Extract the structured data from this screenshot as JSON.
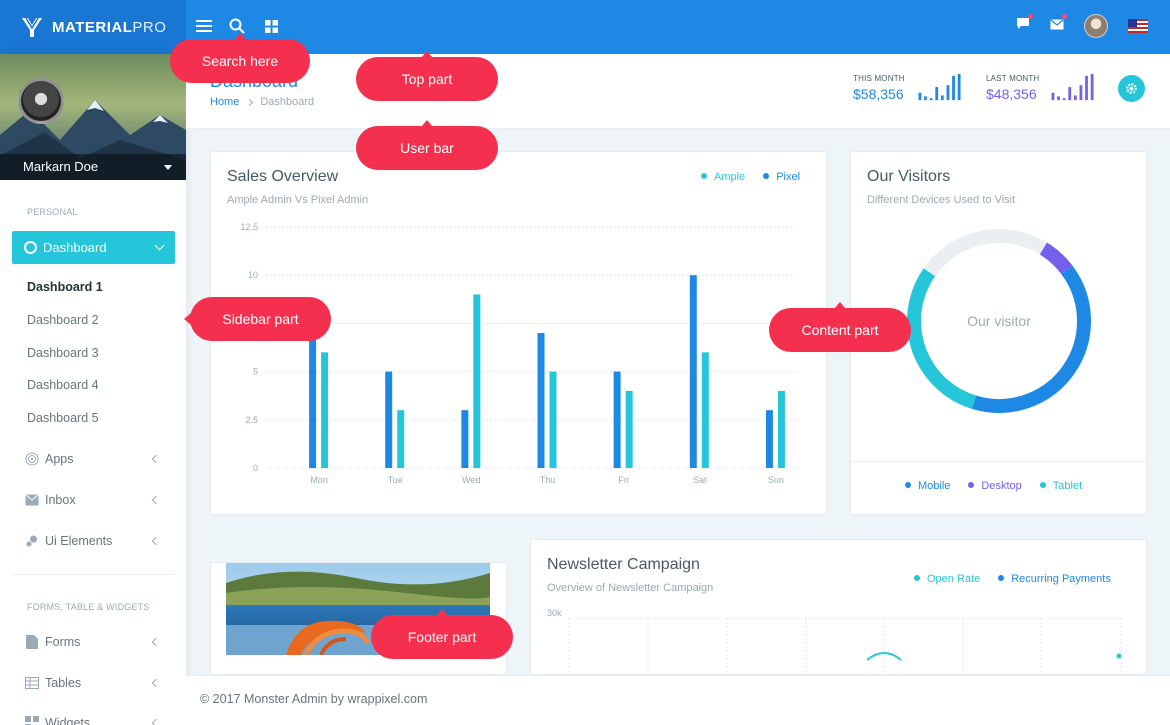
{
  "brand": {
    "name_bold": "MATERIAL",
    "name_light": "PRO"
  },
  "topbar": {
    "icons": [
      "menu-icon",
      "search-icon",
      "apps-grid-icon",
      "message-icon",
      "mail-icon",
      "user-avatar",
      "us-flag-icon"
    ]
  },
  "sidebar": {
    "user_name": "Markarn Doe",
    "section_personal": "PERSONAL",
    "active_item": "Dashboard",
    "dashboard_items": [
      "Dashboard 1",
      "Dashboard 2",
      "Dashboard 3",
      "Dashboard 4",
      "Dashboard 5"
    ],
    "items": [
      {
        "label": "Apps",
        "icon": "target-icon"
      },
      {
        "label": "Inbox",
        "icon": "inbox-icon"
      },
      {
        "label": "Ui Elements",
        "icon": "bubbles-icon"
      }
    ],
    "section_forms": "FORMS, TABLE & WIDGETS",
    "items2": [
      {
        "label": "Forms",
        "icon": "file-icon"
      },
      {
        "label": "Tables",
        "icon": "table-icon"
      },
      {
        "label": "Widgets",
        "icon": "widgets-icon"
      }
    ]
  },
  "header": {
    "title": "Dashboard",
    "breadcrumb": [
      "Home",
      "Dashboard"
    ],
    "this_month": {
      "label": "THIS MONTH",
      "value": "$58,356",
      "color": "#1e88e5"
    },
    "last_month": {
      "label": "LAST MONTH",
      "value": "$48,356",
      "color": "#7460ee"
    }
  },
  "sales": {
    "title": "Sales Overview",
    "subtitle": "Ample Admin Vs Pixel Admin"
  },
  "chart_data": {
    "type": "bar",
    "categories": [
      "Mon",
      "Tue",
      "Wed",
      "Thu",
      "Fri",
      "Sat",
      "Sun"
    ],
    "series": [
      {
        "name": "Ample",
        "color": "#26c6da",
        "values": [
          6,
          3,
          9,
          5,
          4,
          6,
          4
        ]
      },
      {
        "name": "Pixel",
        "color": "#1e88e5",
        "values": [
          7,
          5,
          3,
          7,
          5,
          10,
          3
        ]
      }
    ],
    "yticks": [
      "0",
      "2.5",
      "5",
      "7.5",
      "10",
      "12.5"
    ],
    "ylim": [
      0,
      12.5
    ],
    "legend": "top-right",
    "grid": true
  },
  "visitors": {
    "title": "Our Visitors",
    "subtitle": "Different Devices Used to Visit",
    "center_label": "Our visitor",
    "segments": [
      {
        "name": "Mobile",
        "value": 40,
        "color": "#1e88e5"
      },
      {
        "name": "Desktop",
        "value": 6,
        "color": "#7460ee"
      },
      {
        "name": "Tablet",
        "value": 30,
        "color": "#26c6da"
      },
      {
        "name": "",
        "value": 24,
        "color": "#eceff1"
      }
    ],
    "legend": [
      "Mobile",
      "Desktop",
      "Tablet"
    ]
  },
  "newsletter": {
    "title": "Newsletter Campaign",
    "subtitle": "Overview of Newsletter Campaign",
    "legend": [
      "Open Rate",
      "Recurring Payments"
    ],
    "ytick_top": "30k"
  },
  "footer": {
    "text": "© 2017 Monster Admin by wrappixel.com"
  },
  "annotations": {
    "search": "Search here",
    "top": "Top part",
    "user_bar": "User bar",
    "sidebar": "Sidebar part",
    "content": "Content part",
    "footer": "Footer part"
  }
}
